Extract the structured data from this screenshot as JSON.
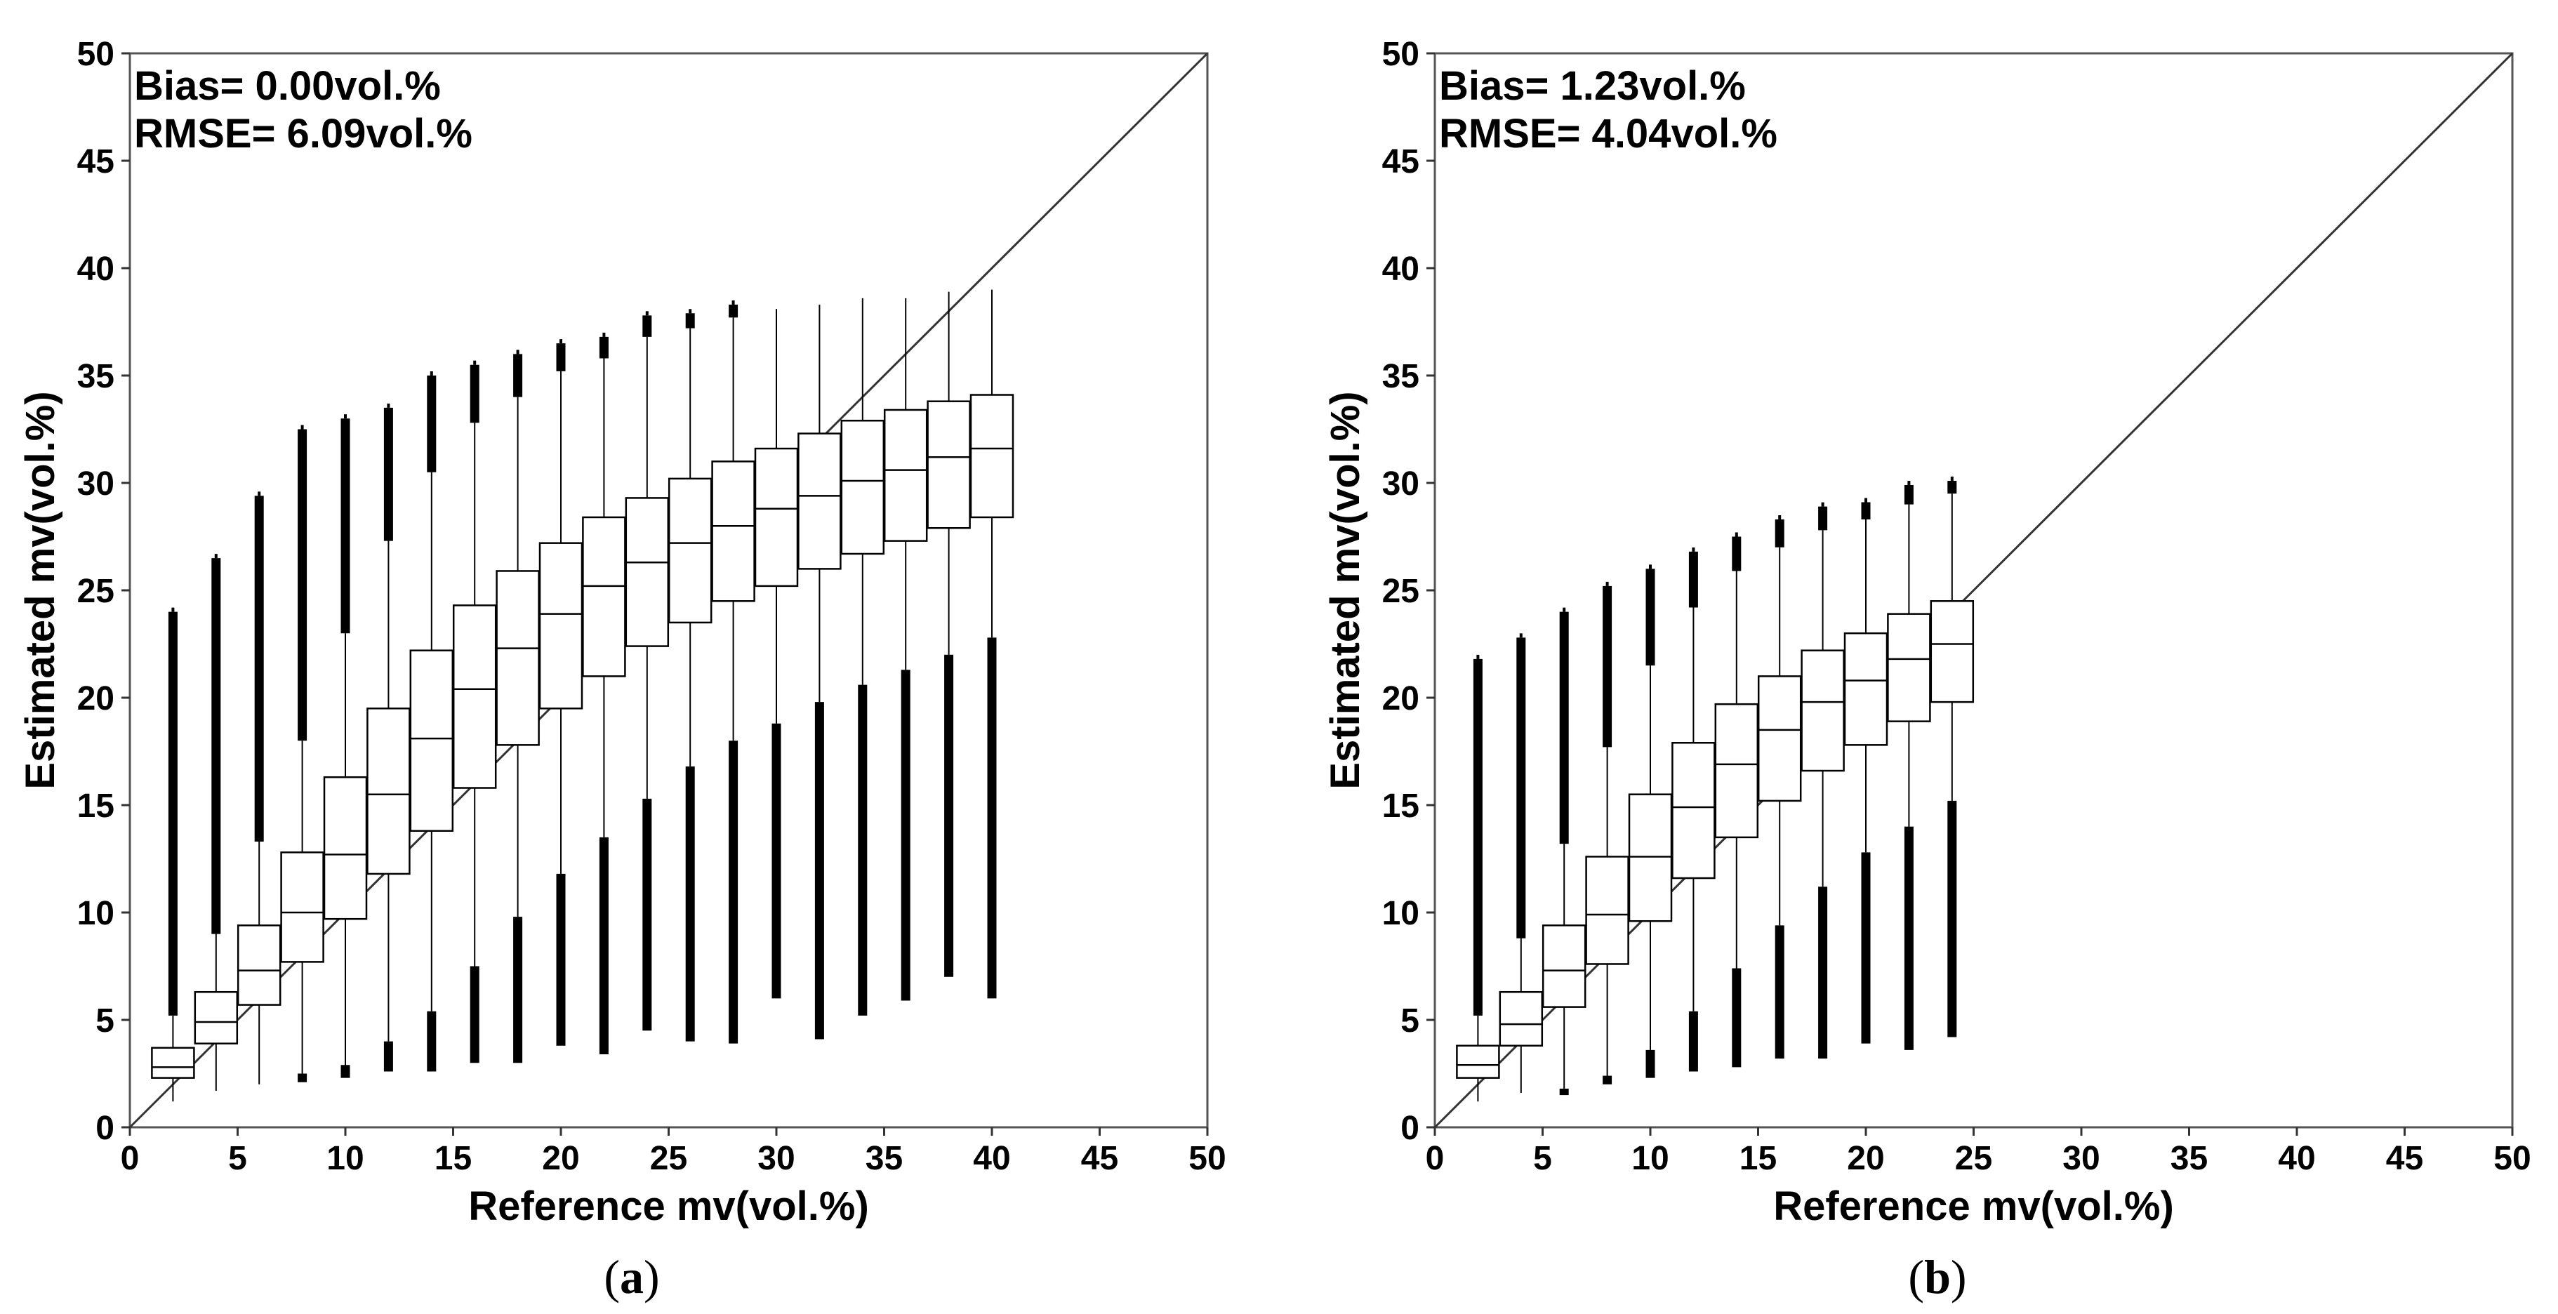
{
  "chart_data": [
    {
      "type": "box",
      "panel": "a",
      "caption_letter": "a",
      "xlabel": "Reference mv(vol.%)",
      "ylabel": "Estimated mv(vol.%)",
      "xlim": [
        0,
        50
      ],
      "ylim": [
        0,
        50
      ],
      "xticks": [
        "0",
        "5",
        "10",
        "15",
        "20",
        "25",
        "30",
        "35",
        "40",
        "45",
        "50"
      ],
      "yticks": [
        "0",
        "5",
        "10",
        "15",
        "20",
        "25",
        "30",
        "35",
        "40",
        "45",
        "50"
      ],
      "annotations": [
        "Bias= 0.00vol.%",
        "RMSE= 6.09vol.%"
      ],
      "reference_line": "1:1",
      "boxes": [
        {
          "x": 2,
          "whisker_low": 1.2,
          "q1": 2.3,
          "median": 2.8,
          "q3": 3.7,
          "whisker_high": 5.2,
          "outliers_high": [
            5.2,
            24.0
          ],
          "outliers_low": null
        },
        {
          "x": 4,
          "whisker_low": 1.7,
          "q1": 3.9,
          "median": 4.9,
          "q3": 6.3,
          "whisker_high": 9.0,
          "outliers_high": [
            9.0,
            26.5
          ],
          "outliers_low": null
        },
        {
          "x": 6,
          "whisker_low": 2.0,
          "q1": 5.7,
          "median": 7.3,
          "q3": 9.4,
          "whisker_high": 13.3,
          "outliers_high": [
            13.3,
            29.4
          ],
          "outliers_low": null
        },
        {
          "x": 8,
          "whisker_low": 2.3,
          "q1": 7.7,
          "median": 10.0,
          "q3": 12.8,
          "whisker_high": 18.0,
          "outliers_high": [
            18.0,
            32.5
          ],
          "outliers_low": [
            2.1,
            2.5
          ]
        },
        {
          "x": 10,
          "whisker_low": 2.8,
          "q1": 9.7,
          "median": 12.7,
          "q3": 16.3,
          "whisker_high": 23.0,
          "outliers_high": [
            23.0,
            33.0
          ],
          "outliers_low": [
            2.3,
            2.9
          ]
        },
        {
          "x": 12,
          "whisker_low": 4.0,
          "q1": 11.8,
          "median": 15.5,
          "q3": 19.5,
          "whisker_high": 27.3,
          "outliers_high": [
            27.3,
            33.5
          ],
          "outliers_low": [
            2.6,
            4.0
          ]
        },
        {
          "x": 14,
          "whisker_low": 5.4,
          "q1": 13.8,
          "median": 18.1,
          "q3": 22.2,
          "whisker_high": 30.5,
          "outliers_high": [
            30.5,
            35.0
          ],
          "outliers_low": [
            2.6,
            5.4
          ]
        },
        {
          "x": 16,
          "whisker_low": 7.5,
          "q1": 15.8,
          "median": 20.4,
          "q3": 24.3,
          "whisker_high": 32.8,
          "outliers_high": [
            32.8,
            35.5
          ],
          "outliers_low": [
            3.0,
            7.5
          ]
        },
        {
          "x": 18,
          "whisker_low": 9.8,
          "q1": 17.8,
          "median": 22.3,
          "q3": 25.9,
          "whisker_high": 34.0,
          "outliers_high": [
            34.0,
            36.0
          ],
          "outliers_low": [
            3.0,
            9.8
          ]
        },
        {
          "x": 20,
          "whisker_low": 11.8,
          "q1": 19.5,
          "median": 23.9,
          "q3": 27.2,
          "whisker_high": 35.2,
          "outliers_high": [
            35.2,
            36.5
          ],
          "outliers_low": [
            3.8,
            11.8
          ]
        },
        {
          "x": 22,
          "whisker_low": 13.5,
          "q1": 21.0,
          "median": 25.2,
          "q3": 28.4,
          "whisker_high": 35.8,
          "outliers_high": [
            35.8,
            36.8
          ],
          "outliers_low": [
            3.4,
            13.5
          ]
        },
        {
          "x": 24,
          "whisker_low": 15.3,
          "q1": 22.4,
          "median": 26.3,
          "q3": 29.3,
          "whisker_high": 36.8,
          "outliers_high": [
            36.8,
            37.8
          ],
          "outliers_low": [
            4.5,
            15.3
          ]
        },
        {
          "x": 26,
          "whisker_low": 16.8,
          "q1": 23.5,
          "median": 27.2,
          "q3": 30.2,
          "whisker_high": 37.2,
          "outliers_high": [
            37.2,
            37.9
          ],
          "outliers_low": [
            4.0,
            16.8
          ]
        },
        {
          "x": 28,
          "whisker_low": 18.0,
          "q1": 24.5,
          "median": 28.0,
          "q3": 31.0,
          "whisker_high": 37.7,
          "outliers_high": [
            37.7,
            38.3
          ],
          "outliers_low": [
            3.9,
            18.0
          ]
        },
        {
          "x": 30,
          "whisker_low": 18.8,
          "q1": 25.2,
          "median": 28.8,
          "q3": 31.6,
          "whisker_high": 38.1,
          "outliers_high": null,
          "outliers_low": [
            6.0,
            18.8
          ]
        },
        {
          "x": 32,
          "whisker_low": 19.8,
          "q1": 26.0,
          "median": 29.4,
          "q3": 32.3,
          "whisker_high": 38.3,
          "outliers_high": null,
          "outliers_low": [
            4.1,
            19.8
          ]
        },
        {
          "x": 34,
          "whisker_low": 20.6,
          "q1": 26.7,
          "median": 30.1,
          "q3": 32.9,
          "whisker_high": 38.6,
          "outliers_high": null,
          "outliers_low": [
            5.2,
            20.6
          ]
        },
        {
          "x": 36,
          "whisker_low": 21.3,
          "q1": 27.3,
          "median": 30.6,
          "q3": 33.4,
          "whisker_high": 38.6,
          "outliers_high": null,
          "outliers_low": [
            5.9,
            21.3
          ]
        },
        {
          "x": 38,
          "whisker_low": 22.0,
          "q1": 27.9,
          "median": 31.2,
          "q3": 33.8,
          "whisker_high": 38.9,
          "outliers_high": null,
          "outliers_low": [
            7.0,
            22.0
          ]
        },
        {
          "x": 40,
          "whisker_low": 22.8,
          "q1": 28.4,
          "median": 31.6,
          "q3": 34.1,
          "whisker_high": 39.0,
          "outliers_high": null,
          "outliers_low": [
            6.0,
            22.8
          ]
        }
      ]
    },
    {
      "type": "box",
      "panel": "b",
      "caption_letter": "b",
      "xlabel": "Reference mv(vol.%)",
      "ylabel": "Estimated mv(vol.%)",
      "xlim": [
        0,
        50
      ],
      "ylim": [
        0,
        50
      ],
      "xticks": [
        "0",
        "5",
        "10",
        "15",
        "20",
        "25",
        "30",
        "35",
        "40",
        "45",
        "50"
      ],
      "yticks": [
        "0",
        "5",
        "10",
        "15",
        "20",
        "25",
        "30",
        "35",
        "40",
        "45",
        "50"
      ],
      "annotations": [
        "Bias= 1.23vol.%",
        "RMSE= 4.04vol.%"
      ],
      "reference_line": "1:1",
      "boxes": [
        {
          "x": 2,
          "whisker_low": 1.2,
          "q1": 2.3,
          "median": 2.9,
          "q3": 3.8,
          "whisker_high": 5.2,
          "outliers_high": [
            5.2,
            21.8
          ],
          "outliers_low": null
        },
        {
          "x": 4,
          "whisker_low": 1.6,
          "q1": 3.8,
          "median": 4.8,
          "q3": 6.3,
          "whisker_high": 8.8,
          "outliers_high": [
            8.8,
            22.8
          ],
          "outliers_low": null
        },
        {
          "x": 6,
          "whisker_low": 1.8,
          "q1": 5.6,
          "median": 7.3,
          "q3": 9.4,
          "whisker_high": 13.2,
          "outliers_high": [
            13.2,
            24.0
          ],
          "outliers_low": [
            1.5,
            1.8
          ]
        },
        {
          "x": 8,
          "whisker_low": 2.4,
          "q1": 7.6,
          "median": 9.9,
          "q3": 12.6,
          "whisker_high": 17.7,
          "outliers_high": [
            17.7,
            25.2
          ],
          "outliers_low": [
            2.0,
            2.4
          ]
        },
        {
          "x": 10,
          "whisker_low": 3.6,
          "q1": 9.6,
          "median": 12.6,
          "q3": 15.5,
          "whisker_high": 21.5,
          "outliers_high": [
            21.5,
            26.0
          ],
          "outliers_low": [
            2.3,
            3.6
          ]
        },
        {
          "x": 12,
          "whisker_low": 5.4,
          "q1": 11.6,
          "median": 14.9,
          "q3": 17.9,
          "whisker_high": 24.2,
          "outliers_high": [
            24.2,
            26.8
          ],
          "outliers_low": [
            2.6,
            5.4
          ]
        },
        {
          "x": 14,
          "whisker_low": 7.4,
          "q1": 13.5,
          "median": 16.9,
          "q3": 19.7,
          "whisker_high": 25.9,
          "outliers_high": [
            25.9,
            27.5
          ],
          "outliers_low": [
            2.8,
            7.4
          ]
        },
        {
          "x": 16,
          "whisker_low": 9.4,
          "q1": 15.2,
          "median": 18.5,
          "q3": 21.0,
          "whisker_high": 27.0,
          "outliers_high": [
            27.0,
            28.3
          ],
          "outliers_low": [
            3.2,
            9.4
          ]
        },
        {
          "x": 18,
          "whisker_low": 11.2,
          "q1": 16.6,
          "median": 19.8,
          "q3": 22.2,
          "whisker_high": 27.8,
          "outliers_high": [
            27.8,
            28.9
          ],
          "outliers_low": [
            3.2,
            11.2
          ]
        },
        {
          "x": 20,
          "whisker_low": 12.8,
          "q1": 17.8,
          "median": 20.8,
          "q3": 23.0,
          "whisker_high": 28.3,
          "outliers_high": [
            28.3,
            29.1
          ],
          "outliers_low": [
            3.9,
            12.8
          ]
        },
        {
          "x": 22,
          "whisker_low": 14.0,
          "q1": 18.9,
          "median": 21.8,
          "q3": 23.9,
          "whisker_high": 29.0,
          "outliers_high": [
            29.0,
            29.9
          ],
          "outliers_low": [
            3.6,
            14.0
          ]
        },
        {
          "x": 24,
          "whisker_low": 15.2,
          "q1": 19.8,
          "median": 22.5,
          "q3": 24.5,
          "whisker_high": 29.5,
          "outliers_high": [
            29.5,
            30.1
          ],
          "outliers_low": [
            4.2,
            15.2
          ]
        }
      ]
    }
  ]
}
